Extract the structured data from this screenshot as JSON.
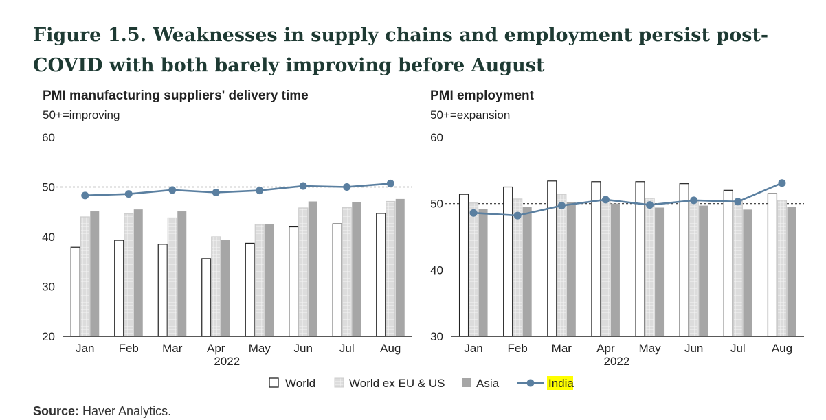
{
  "figure": {
    "title": "Figure 1.5. Weaknesses in supply chains and employment persist post-COVID with both barely improving before August",
    "source_label": "Source:",
    "source_text": " Haver Analytics."
  },
  "colors": {
    "world": "#ffffff",
    "world_ex": "#d9d9d9",
    "asia": "#a6a6a6",
    "india": "#5a7fa0",
    "india_highlight": "#ffff00",
    "axis": "#222222",
    "reference_line": "#333333"
  },
  "legend": {
    "world": "World",
    "world_ex": "World ex EU & US",
    "asia": "Asia",
    "india": "India"
  },
  "chart_data": [
    {
      "type": "bar",
      "title": "PMI manufacturing suppliers' delivery time",
      "subtitle": "50+=improving",
      "categories": [
        "Jan",
        "Feb",
        "Mar",
        "Apr",
        "May",
        "Jun",
        "Jul",
        "Aug"
      ],
      "x_group_label": "2022",
      "x_group_label_under": "Apr",
      "ylim": [
        20,
        60
      ],
      "yticks": [
        20,
        30,
        40,
        50,
        60
      ],
      "reference_line": 50,
      "series": [
        {
          "name": "World",
          "kind": "bar",
          "values": [
            37.9,
            39.3,
            38.5,
            35.6,
            38.7,
            42.0,
            42.6,
            44.7
          ]
        },
        {
          "name": "World ex EU & US",
          "kind": "bar",
          "values": [
            44.0,
            44.6,
            43.8,
            40.0,
            42.5,
            45.8,
            45.9,
            47.1
          ]
        },
        {
          "name": "Asia",
          "kind": "bar",
          "values": [
            45.1,
            45.5,
            45.1,
            39.4,
            42.6,
            47.1,
            47.0,
            47.6
          ]
        },
        {
          "name": "India",
          "kind": "line",
          "values": [
            48.3,
            48.6,
            49.4,
            48.9,
            49.3,
            50.2,
            50.0,
            50.7
          ]
        }
      ]
    },
    {
      "type": "bar",
      "title": "PMI employment",
      "subtitle": "50+=expansion",
      "categories": [
        "Jan",
        "Feb",
        "Mar",
        "Apr",
        "May",
        "Jun",
        "Jul",
        "Aug"
      ],
      "x_group_label": "2022",
      "x_group_label_under": "Apr",
      "ylim": [
        30,
        60
      ],
      "yticks": [
        30,
        40,
        50,
        60
      ],
      "reference_line": 50,
      "series": [
        {
          "name": "World",
          "kind": "bar",
          "values": [
            51.4,
            52.5,
            53.4,
            53.3,
            53.3,
            53.0,
            52.0,
            51.5
          ]
        },
        {
          "name": "World ex EU & US",
          "kind": "bar",
          "values": [
            50.1,
            50.7,
            51.4,
            50.3,
            50.8,
            50.3,
            50.4,
            50.5
          ]
        },
        {
          "name": "Asia",
          "kind": "bar",
          "values": [
            49.2,
            49.5,
            50.2,
            50.0,
            49.4,
            49.7,
            49.1,
            49.5
          ]
        },
        {
          "name": "India",
          "kind": "line",
          "values": [
            48.6,
            48.2,
            49.7,
            50.6,
            49.8,
            50.5,
            50.3,
            53.1
          ]
        }
      ]
    }
  ]
}
